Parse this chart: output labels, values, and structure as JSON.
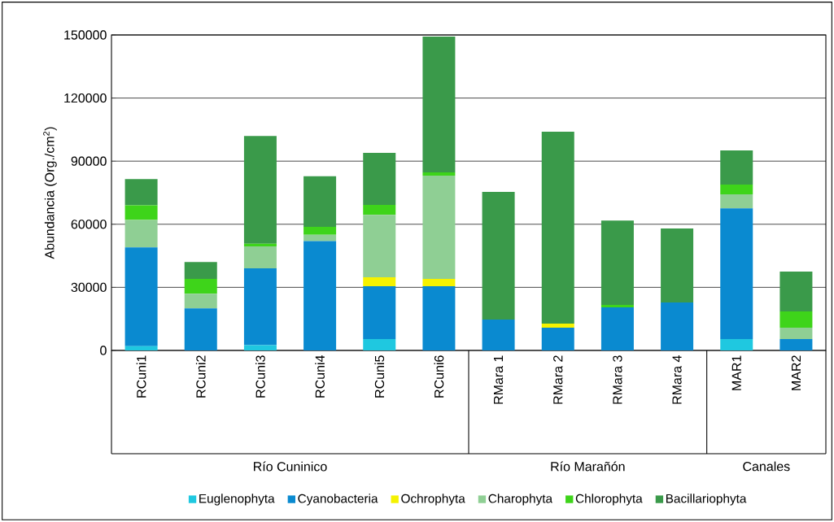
{
  "chart_data": {
    "type": "bar",
    "stacked": true,
    "ylabel": "Abundancia (Org./cm$^{2}$)",
    "categories": [
      "RCuni1",
      "RCuni2",
      "RCuni3",
      "RCuni4",
      "RCuni5",
      "RCuni6",
      "RMara 1",
      "RMara 2",
      "RMara 3",
      "RMara 4",
      "MAR1",
      "MAR2"
    ],
    "series": [
      {
        "name": "Euglenophyta",
        "color": "#1fc8e0",
        "values": [
          2000,
          0,
          2500,
          0,
          5400,
          0,
          0,
          0,
          0,
          0,
          5400,
          0
        ]
      },
      {
        "name": "Cyanobacteria",
        "color": "#0a8ad0",
        "values": [
          47000,
          20000,
          36500,
          52000,
          25100,
          30500,
          14700,
          10800,
          20500,
          22800,
          62200,
          5400
        ]
      },
      {
        "name": "Ochrophyta",
        "color": "#f5f200",
        "values": [
          0,
          0,
          0,
          0,
          4300,
          3500,
          0,
          2000,
          0,
          0,
          0,
          0
        ]
      },
      {
        "name": "Charophyta",
        "color": "#8fcf94",
        "values": [
          13000,
          7000,
          10500,
          3000,
          29700,
          49100,
          0,
          0,
          0,
          0,
          6600,
          5400
        ]
      },
      {
        "name": "Chlorophyta",
        "color": "#3ed41a",
        "values": [
          7000,
          7000,
          1200,
          3800,
          4700,
          1600,
          0,
          0,
          1100,
          0,
          4700,
          7800
        ]
      },
      {
        "name": "Bacillariophyta",
        "color": "#3a9a4a",
        "values": [
          12500,
          8000,
          51300,
          24000,
          24700,
          64500,
          60700,
          91200,
          40200,
          35200,
          16200,
          18900
        ]
      }
    ],
    "ylim": [
      0,
      150000
    ],
    "yticks": [
      0,
      30000,
      60000,
      90000,
      120000,
      150000
    ],
    "grid": "y",
    "legend": "bottom",
    "annotations": [
      "Río Cuninico",
      "Río Marañón",
      "Canales"
    ]
  }
}
